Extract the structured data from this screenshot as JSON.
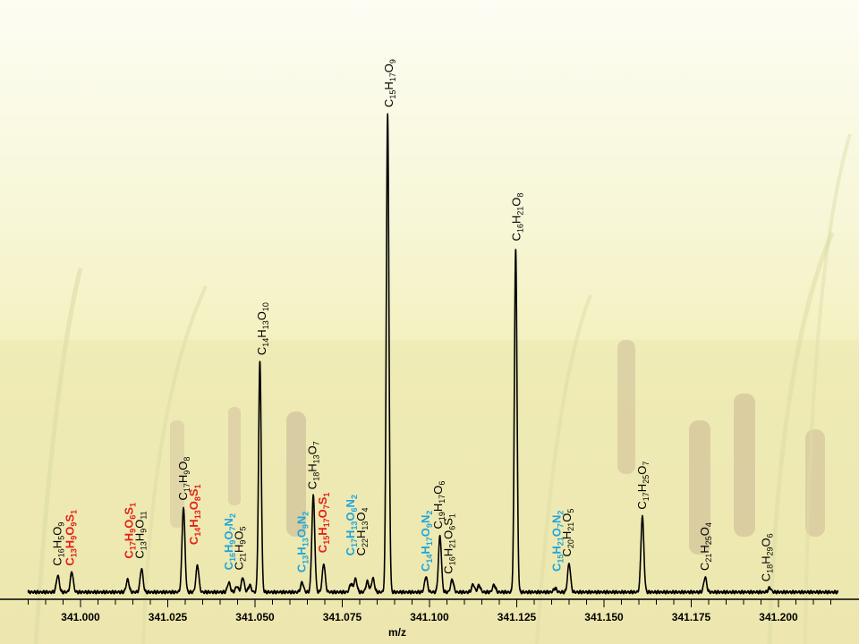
{
  "chart_data": {
    "type": "line",
    "title": "",
    "xlabel": "m/z",
    "ylabel": "",
    "xlim": [
      340.985,
      341.217
    ],
    "ylim": [
      0,
      100
    ],
    "grid": false,
    "legend": "none",
    "x_ticks": [
      341.0,
      341.025,
      341.05,
      341.075,
      341.1,
      341.125,
      341.15,
      341.175,
      341.2
    ],
    "x_tick_labels": [
      "341.000",
      "341.025",
      "341.050",
      "341.075",
      "341.100",
      "341.125",
      "341.150",
      "341.175",
      "341.200"
    ],
    "colors": {
      "line": "#000000",
      "black_label": "#000000",
      "red_label": "#e32119",
      "blue_label": "#1fa5dc"
    },
    "peaks": [
      {
        "mz": 340.9935,
        "intensity": 3.5
      },
      {
        "mz": 340.9975,
        "intensity": 4.2
      },
      {
        "mz": 341.0135,
        "intensity": 2.6
      },
      {
        "mz": 341.0175,
        "intensity": 4.9
      },
      {
        "mz": 341.0295,
        "intensity": 17.7
      },
      {
        "mz": 341.0335,
        "intensity": 5.6
      },
      {
        "mz": 341.0425,
        "intensity": 2.0
      },
      {
        "mz": 341.0448,
        "intensity": 1.2
      },
      {
        "mz": 341.0465,
        "intensity": 3.0
      },
      {
        "mz": 341.0485,
        "intensity": 1.4
      },
      {
        "mz": 341.0514,
        "intensity": 48.3
      },
      {
        "mz": 341.0635,
        "intensity": 2.0
      },
      {
        "mz": 341.0667,
        "intensity": 20.2
      },
      {
        "mz": 341.0697,
        "intensity": 5.9
      },
      {
        "mz": 341.0775,
        "intensity": 1.7
      },
      {
        "mz": 341.0788,
        "intensity": 2.8
      },
      {
        "mz": 341.0822,
        "intensity": 2.2
      },
      {
        "mz": 341.0838,
        "intensity": 2.9
      },
      {
        "mz": 341.088,
        "intensity": 100
      },
      {
        "mz": 341.099,
        "intensity": 3.2
      },
      {
        "mz": 341.103,
        "intensity": 11.8
      },
      {
        "mz": 341.1065,
        "intensity": 2.6
      },
      {
        "mz": 341.1125,
        "intensity": 1.6
      },
      {
        "mz": 341.1142,
        "intensity": 1.4
      },
      {
        "mz": 341.1185,
        "intensity": 1.5
      },
      {
        "mz": 341.1247,
        "intensity": 72.0
      },
      {
        "mz": 341.136,
        "intensity": 0.8
      },
      {
        "mz": 341.14,
        "intensity": 6.0
      },
      {
        "mz": 341.161,
        "intensity": 15.9
      },
      {
        "mz": 341.179,
        "intensity": 3.1
      },
      {
        "mz": 341.1975,
        "intensity": 0.9
      }
    ],
    "annotations": [
      {
        "mz": 340.9935,
        "y": 5.5,
        "color": "black",
        "parts": [
          [
            "C",
            ""
          ],
          [
            "16",
            1
          ],
          [
            "H",
            ""
          ],
          [
            "5",
            1
          ],
          [
            "O",
            ""
          ],
          [
            "9",
            1
          ]
        ]
      },
      {
        "mz": 340.997,
        "y": 5.5,
        "color": "red",
        "parts": [
          [
            "C",
            ""
          ],
          [
            "13",
            1
          ],
          [
            "H",
            ""
          ],
          [
            "9",
            1
          ],
          [
            "O",
            ""
          ],
          [
            "9",
            1
          ],
          [
            "S",
            ""
          ],
          [
            "1",
            1
          ]
        ]
      },
      {
        "mz": 341.014,
        "y": 7.0,
        "color": "red",
        "parts": [
          [
            "C",
            ""
          ],
          [
            "17",
            1
          ],
          [
            "H",
            ""
          ],
          [
            "9",
            1
          ],
          [
            "O",
            ""
          ],
          [
            "6",
            1
          ],
          [
            "S",
            ""
          ],
          [
            "1",
            1
          ]
        ]
      },
      {
        "mz": 341.017,
        "y": 7.0,
        "color": "black",
        "parts": [
          [
            "C",
            ""
          ],
          [
            "13",
            1
          ],
          [
            "H",
            ""
          ],
          [
            "9",
            1
          ],
          [
            "O",
            ""
          ],
          [
            "11",
            1
          ]
        ]
      },
      {
        "mz": 341.0295,
        "y": 19.2,
        "color": "black",
        "parts": [
          [
            "C",
            ""
          ],
          [
            "17",
            1
          ],
          [
            "H",
            ""
          ],
          [
            "9",
            1
          ],
          [
            "O",
            ""
          ],
          [
            "8",
            1
          ]
        ]
      },
      {
        "mz": 341.0325,
        "y": 9.9,
        "color": "red",
        "parts": [
          [
            "C",
            ""
          ],
          [
            "14",
            1
          ],
          [
            "H",
            ""
          ],
          [
            "13",
            1
          ],
          [
            "O",
            ""
          ],
          [
            "8",
            1
          ],
          [
            "S",
            ""
          ],
          [
            "1",
            1
          ]
        ]
      },
      {
        "mz": 341.0425,
        "y": 4.6,
        "color": "blue",
        "parts": [
          [
            "C",
            ""
          ],
          [
            "16",
            1
          ],
          [
            "H",
            ""
          ],
          [
            "9",
            1
          ],
          [
            "O",
            ""
          ],
          [
            "7",
            1
          ],
          [
            "N",
            ""
          ],
          [
            "2",
            1
          ]
        ]
      },
      {
        "mz": 341.0455,
        "y": 4.6,
        "color": "black",
        "parts": [
          [
            "C",
            ""
          ],
          [
            "21",
            1
          ],
          [
            "H",
            ""
          ],
          [
            "9",
            1
          ],
          [
            "O",
            ""
          ],
          [
            "5",
            1
          ]
        ]
      },
      {
        "mz": 341.052,
        "y": 49.6,
        "color": "black",
        "parts": [
          [
            "C",
            ""
          ],
          [
            "14",
            1
          ],
          [
            "H",
            ""
          ],
          [
            "13",
            1
          ],
          [
            "O",
            ""
          ],
          [
            "10",
            1
          ]
        ]
      },
      {
        "mz": 341.0635,
        "y": 4.1,
        "color": "blue",
        "parts": [
          [
            "C",
            ""
          ],
          [
            "13",
            1
          ],
          [
            "H",
            ""
          ],
          [
            "13",
            1
          ],
          [
            "O",
            ""
          ],
          [
            "9",
            1
          ],
          [
            "N",
            ""
          ],
          [
            "2",
            1
          ]
        ]
      },
      {
        "mz": 341.0665,
        "y": 21.5,
        "color": "black",
        "parts": [
          [
            "C",
            ""
          ],
          [
            "18",
            1
          ],
          [
            "H",
            ""
          ],
          [
            "13",
            1
          ],
          [
            "O",
            ""
          ],
          [
            "7",
            1
          ]
        ]
      },
      {
        "mz": 341.0695,
        "y": 8.2,
        "color": "red",
        "parts": [
          [
            "C",
            ""
          ],
          [
            "15",
            1
          ],
          [
            "H",
            ""
          ],
          [
            "17",
            1
          ],
          [
            "O",
            ""
          ],
          [
            "7",
            1
          ],
          [
            "S",
            ""
          ],
          [
            "1",
            1
          ]
        ]
      },
      {
        "mz": 341.0775,
        "y": 7.6,
        "color": "blue",
        "parts": [
          [
            "C",
            ""
          ],
          [
            "17",
            1
          ],
          [
            "H",
            ""
          ],
          [
            "13",
            1
          ],
          [
            "O",
            ""
          ],
          [
            "6",
            1
          ],
          [
            "N",
            ""
          ],
          [
            "2",
            1
          ]
        ]
      },
      {
        "mz": 341.0805,
        "y": 7.6,
        "color": "black",
        "parts": [
          [
            "C",
            ""
          ],
          [
            "22",
            1
          ],
          [
            "H",
            ""
          ],
          [
            "13",
            1
          ],
          [
            "O",
            ""
          ],
          [
            "4",
            1
          ]
        ]
      },
      {
        "mz": 341.0885,
        "y": 101.5,
        "color": "black",
        "parts": [
          [
            "C",
            ""
          ],
          [
            "15",
            1
          ],
          [
            "H",
            ""
          ],
          [
            "17",
            1
          ],
          [
            "O",
            ""
          ],
          [
            "9",
            1
          ]
        ]
      },
      {
        "mz": 341.099,
        "y": 4.3,
        "color": "blue",
        "parts": [
          [
            "C",
            ""
          ],
          [
            "14",
            1
          ],
          [
            "H",
            ""
          ],
          [
            "17",
            1
          ],
          [
            "O",
            ""
          ],
          [
            "9",
            1
          ],
          [
            "N",
            ""
          ],
          [
            "2",
            1
          ]
        ]
      },
      {
        "mz": 341.1025,
        "y": 13.2,
        "color": "black",
        "parts": [
          [
            "C",
            ""
          ],
          [
            "19",
            1
          ],
          [
            "H",
            ""
          ],
          [
            "17",
            1
          ],
          [
            "O",
            ""
          ],
          [
            "6",
            1
          ]
        ]
      },
      {
        "mz": 341.1055,
        "y": 3.8,
        "color": "black",
        "parts": [
          [
            "C",
            ""
          ],
          [
            "16",
            1
          ],
          [
            "H",
            ""
          ],
          [
            "21",
            1
          ],
          [
            "O",
            ""
          ],
          [
            "6",
            1
          ],
          [
            "S",
            ""
          ],
          [
            "1",
            1
          ]
        ]
      },
      {
        "mz": 341.125,
        "y": 73.5,
        "color": "black",
        "parts": [
          [
            "C",
            ""
          ],
          [
            "16",
            1
          ],
          [
            "H",
            ""
          ],
          [
            "21",
            1
          ],
          [
            "O",
            ""
          ],
          [
            "8",
            1
          ]
        ]
      },
      {
        "mz": 341.1365,
        "y": 4.3,
        "color": "blue",
        "parts": [
          [
            "C",
            ""
          ],
          [
            "15",
            1
          ],
          [
            "H",
            ""
          ],
          [
            "21",
            1
          ],
          [
            "O",
            ""
          ],
          [
            "7",
            1
          ],
          [
            "N",
            ""
          ],
          [
            "2",
            1
          ]
        ]
      },
      {
        "mz": 341.1395,
        "y": 7.4,
        "color": "black",
        "parts": [
          [
            "C",
            ""
          ],
          [
            "20",
            1
          ],
          [
            "H",
            ""
          ],
          [
            "21",
            1
          ],
          [
            "O",
            ""
          ],
          [
            "5",
            1
          ]
        ]
      },
      {
        "mz": 341.161,
        "y": 17.3,
        "color": "black",
        "parts": [
          [
            "C",
            ""
          ],
          [
            "17",
            1
          ],
          [
            "H",
            ""
          ],
          [
            "25",
            1
          ],
          [
            "O",
            ""
          ],
          [
            "7",
            1
          ]
        ]
      },
      {
        "mz": 341.179,
        "y": 4.5,
        "color": "black",
        "parts": [
          [
            "C",
            ""
          ],
          [
            "21",
            1
          ],
          [
            "H",
            ""
          ],
          [
            "25",
            1
          ],
          [
            "O",
            ""
          ],
          [
            "4",
            1
          ]
        ]
      },
      {
        "mz": 341.1965,
        "y": 2.2,
        "color": "black",
        "parts": [
          [
            "C",
            ""
          ],
          [
            "18",
            1
          ],
          [
            "H",
            ""
          ],
          [
            "29",
            1
          ],
          [
            "O",
            ""
          ],
          [
            "6",
            1
          ]
        ]
      }
    ]
  }
}
